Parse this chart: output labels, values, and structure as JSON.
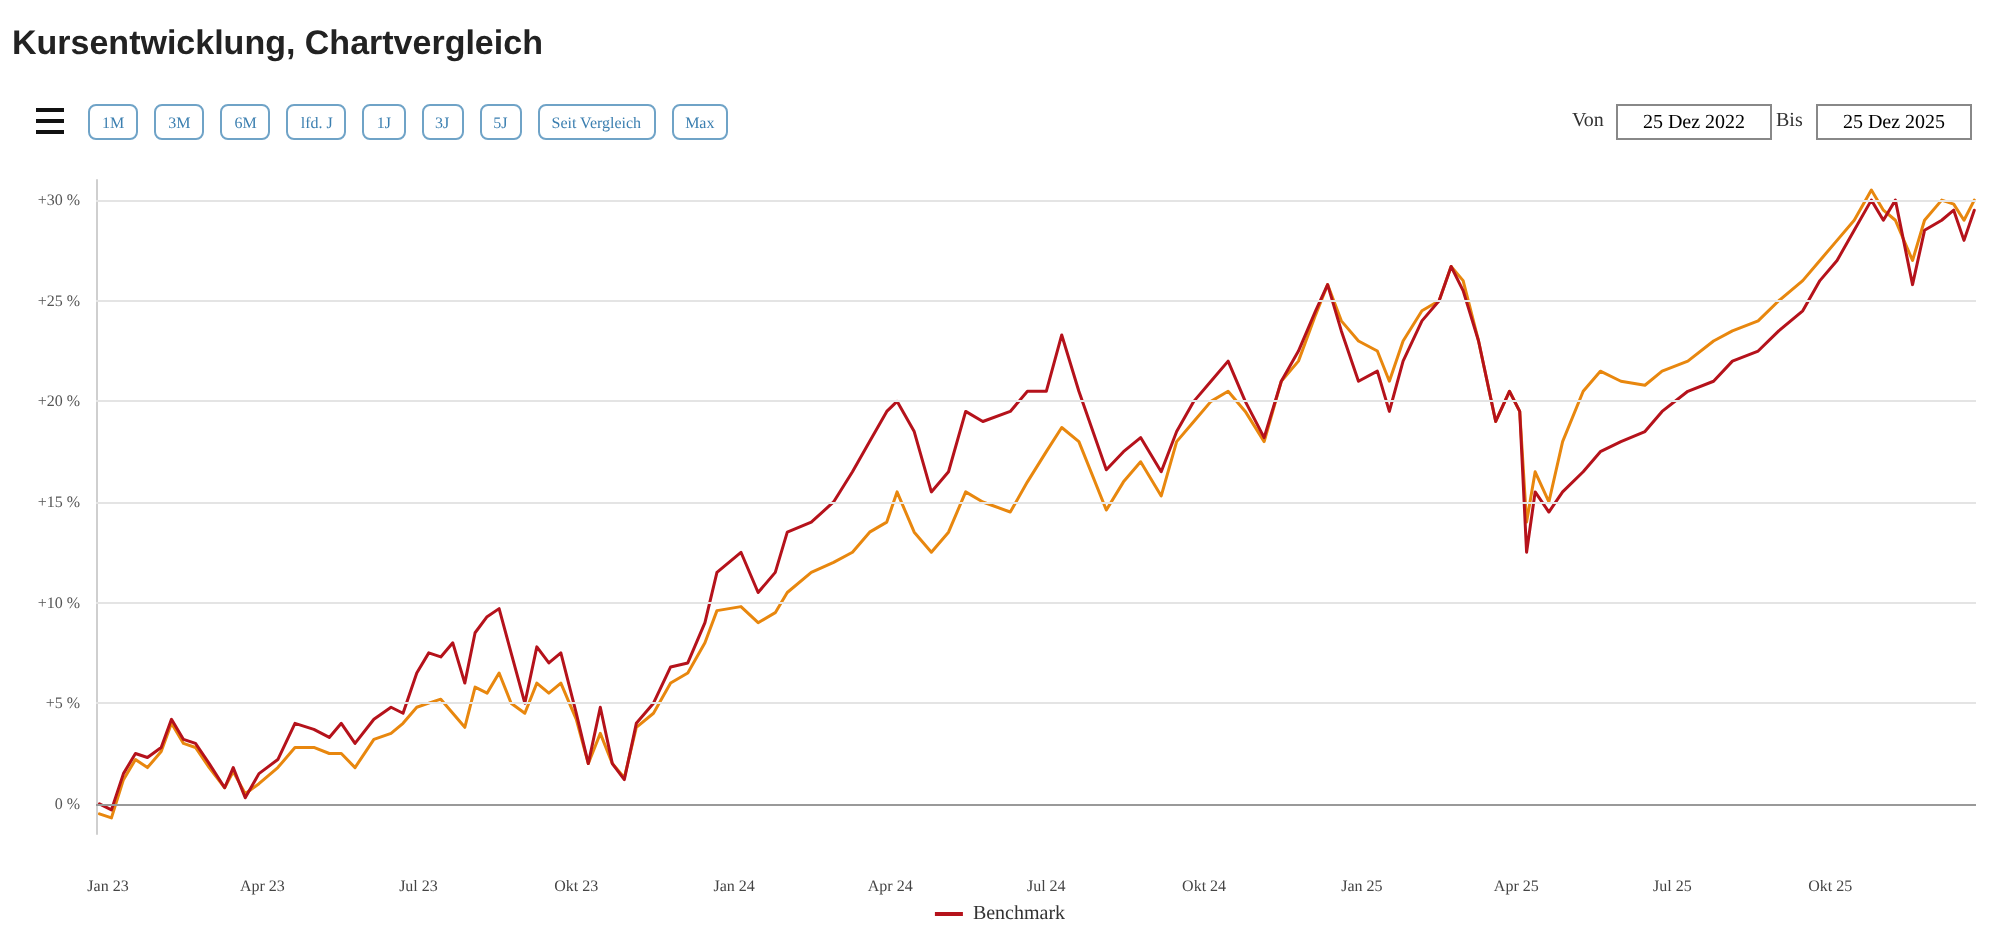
{
  "chart_data": {
    "type": "line",
    "title": "Kursentwicklung, Chartvergleich",
    "annotations": [
      "1M",
      "3M",
      "6M",
      "lfd. J",
      "1J",
      "3J",
      "5J",
      "Seit Vergleich",
      "Max",
      "Von",
      "25 Dez 2022",
      "Bis",
      "25 Dez 2025"
    ],
    "x": [
      "2022-12-27",
      "2023-01-03",
      "2023-01-10",
      "2023-01-17",
      "2023-01-24",
      "2023-02-01",
      "2023-02-07",
      "2023-02-14",
      "2023-02-21",
      "2023-03-01",
      "2023-03-10",
      "2023-03-15",
      "2023-03-22",
      "2023-03-30",
      "2023-04-10",
      "2023-04-20",
      "2023-05-01",
      "2023-05-10",
      "2023-05-17",
      "2023-05-25",
      "2023-06-05",
      "2023-06-15",
      "2023-06-22",
      "2023-06-30",
      "2023-07-07",
      "2023-07-14",
      "2023-07-21",
      "2023-07-28",
      "2023-08-03",
      "2023-08-10",
      "2023-08-17",
      "2023-08-24",
      "2023-09-01",
      "2023-09-08",
      "2023-09-15",
      "2023-09-22",
      "2023-10-01",
      "2023-10-08",
      "2023-10-15",
      "2023-10-22",
      "2023-10-29",
      "2023-11-05",
      "2023-11-15",
      "2023-11-25",
      "2023-12-05",
      "2023-12-15",
      "2023-12-22",
      "2024-01-05",
      "2024-01-15",
      "2024-01-25",
      "2024-02-01",
      "2024-02-15",
      "2024-02-28",
      "2024-03-10",
      "2024-03-20",
      "2024-03-30",
      "2024-04-05",
      "2024-04-15",
      "2024-04-25",
      "2024-05-05",
      "2024-05-15",
      "2024-05-25",
      "2024-06-10",
      "2024-06-20",
      "2024-07-01",
      "2024-07-10",
      "2024-07-20",
      "2024-08-05",
      "2024-08-15",
      "2024-08-25",
      "2024-09-06",
      "2024-09-15",
      "2024-09-25",
      "2024-10-05",
      "2024-10-15",
      "2024-10-25",
      "2024-11-05",
      "2024-11-15",
      "2024-11-25",
      "2024-12-05",
      "2024-12-12",
      "2024-12-20",
      "2024-12-30",
      "2025-01-10",
      "2025-01-17",
      "2025-01-25",
      "2025-02-05",
      "2025-02-15",
      "2025-02-22",
      "2025-03-01",
      "2025-03-10",
      "2025-03-20",
      "2025-03-28",
      "2025-04-03",
      "2025-04-07",
      "2025-04-12",
      "2025-04-20",
      "2025-04-28",
      "2025-05-10",
      "2025-05-20",
      "2025-06-01",
      "2025-06-15",
      "2025-06-25",
      "2025-07-10",
      "2025-07-25",
      "2025-08-05",
      "2025-08-20",
      "2025-09-01",
      "2025-09-15",
      "2025-09-25",
      "2025-10-05",
      "2025-10-15",
      "2025-10-25",
      "2025-11-01",
      "2025-11-08",
      "2025-11-18",
      "2025-11-25",
      "2025-12-05",
      "2025-12-12",
      "2025-12-18",
      "2025-12-24"
    ],
    "series": [
      {
        "color": "#e8870e",
        "values": [
          -0.5,
          -0.7,
          1.2,
          2.2,
          1.8,
          2.6,
          4.0,
          3.0,
          2.8,
          1.8,
          0.8,
          1.6,
          0.5,
          1.0,
          1.8,
          2.8,
          2.8,
          2.5,
          2.5,
          1.8,
          3.2,
          3.5,
          4.0,
          4.8,
          5.0,
          5.2,
          4.5,
          3.8,
          5.8,
          5.5,
          6.5,
          5.0,
          4.5,
          6.0,
          5.5,
          6.0,
          4.2,
          2.0,
          3.5,
          2.0,
          1.3,
          3.8,
          4.5,
          6.0,
          6.5,
          8.0,
          9.6,
          9.8,
          9.0,
          9.5,
          10.5,
          11.5,
          12.0,
          12.5,
          13.5,
          14.0,
          15.5,
          13.5,
          12.5,
          13.5,
          15.5,
          15.0,
          14.5,
          16.0,
          17.5,
          18.7,
          18.0,
          14.6,
          16.0,
          17.0,
          15.3,
          18.0,
          19.0,
          20.0,
          20.5,
          19.5,
          18.0,
          21.0,
          22.0,
          24.3,
          25.8,
          24.0,
          23.0,
          22.5,
          21.0,
          23.0,
          24.5,
          25.0,
          26.7,
          26.0,
          23.0,
          19.0,
          20.5,
          19.5,
          14.0,
          16.5,
          15.0,
          18.0,
          20.5,
          21.5,
          21.0,
          20.8,
          21.5,
          22.0,
          23.0,
          23.5,
          24.0,
          25.0,
          26.0,
          27.0,
          28.0,
          29.0,
          30.5,
          29.5,
          29.0,
          27.0,
          29.0,
          30.0,
          29.8,
          29.0,
          30.0
        ]
      },
      {
        "name": "Benchmark",
        "color": "#b5121b",
        "values": [
          0,
          -0.3,
          1.5,
          2.5,
          2.3,
          2.8,
          4.2,
          3.2,
          3.0,
          2.0,
          0.8,
          1.8,
          0.3,
          1.5,
          2.2,
          4.0,
          3.7,
          3.3,
          4.0,
          3.0,
          4.2,
          4.8,
          4.5,
          6.5,
          7.5,
          7.3,
          8.0,
          6.0,
          8.5,
          9.3,
          9.7,
          7.5,
          5.0,
          7.8,
          7.0,
          7.5,
          4.5,
          2.0,
          4.8,
          2.0,
          1.2,
          4.0,
          5.0,
          6.8,
          7.0,
          9.0,
          11.5,
          12.5,
          10.5,
          11.5,
          13.5,
          14.0,
          15.0,
          16.5,
          18.0,
          19.5,
          20.0,
          18.5,
          15.5,
          16.5,
          19.5,
          19.0,
          19.5,
          20.5,
          20.5,
          23.3,
          20.5,
          16.6,
          17.5,
          18.2,
          16.5,
          18.5,
          20.0,
          21.0,
          22.0,
          20.0,
          18.2,
          21.0,
          22.5,
          24.5,
          25.8,
          23.5,
          21.0,
          21.5,
          19.5,
          22.0,
          24.0,
          25.0,
          26.7,
          25.5,
          23.0,
          19.0,
          20.5,
          19.5,
          12.5,
          15.5,
          14.5,
          15.5,
          16.5,
          17.5,
          18.0,
          18.5,
          19.5,
          20.5,
          21.0,
          22.0,
          22.5,
          23.5,
          24.5,
          26.0,
          27.0,
          28.5,
          30.0,
          29.0,
          30.0,
          25.8,
          28.5,
          29.0,
          29.5,
          28.0,
          29.5
        ]
      }
    ],
    "xlim": [
      "2022-12-25",
      "2025-12-25"
    ],
    "xticks": [
      {
        "value": "2023-01-01",
        "label": "Jan 23"
      },
      {
        "value": "2023-04-01",
        "label": "Apr 23"
      },
      {
        "value": "2023-07-01",
        "label": "Jul 23"
      },
      {
        "value": "2023-10-01",
        "label": "Okt 23"
      },
      {
        "value": "2024-01-01",
        "label": "Jan 24"
      },
      {
        "value": "2024-04-01",
        "label": "Apr 24"
      },
      {
        "value": "2024-07-01",
        "label": "Jul 24"
      },
      {
        "value": "2024-10-01",
        "label": "Okt 24"
      },
      {
        "value": "2025-01-01",
        "label": "Jan 25"
      },
      {
        "value": "2025-04-01",
        "label": "Apr 25"
      },
      {
        "value": "2025-07-01",
        "label": "Jul 25"
      },
      {
        "value": "2025-10-01",
        "label": "Okt 25"
      }
    ],
    "ylim": [
      -1.5,
      31
    ],
    "yticks": [
      {
        "value": 0,
        "label": "0 %"
      },
      {
        "value": 5,
        "label": "+5 %"
      },
      {
        "value": 10,
        "label": "+10 %"
      },
      {
        "value": 15,
        "label": "+15 %"
      },
      {
        "value": 20,
        "label": "+20 %"
      },
      {
        "value": 25,
        "label": "+25 %"
      },
      {
        "value": 30,
        "label": "+30 %"
      }
    ],
    "grid": "y",
    "legend": "bottom",
    "marker": "none",
    "line_style": "solid"
  }
}
